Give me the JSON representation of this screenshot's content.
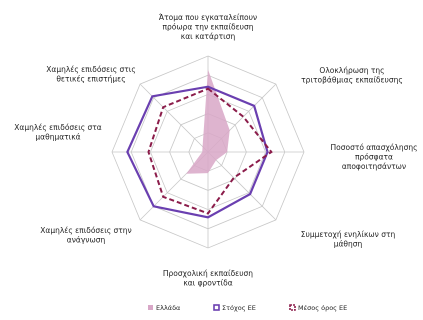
{
  "chart_data": {
    "type": "radar",
    "axes": [
      [
        "Άτομα που εγκαταλείπουν",
        "πρόωρα την εκπαίδευση",
        "και κατάρτιση"
      ],
      [
        "Ολοκλήρωση της",
        "τριτοβάθμιας εκπαίδευσης"
      ],
      [
        "Ποσοστό απασχόλησης",
        "πρόσφατα",
        "αποφοιτησάντων"
      ],
      [
        "Συμμετοχή ενηλίκων στη",
        "μάθηση"
      ],
      [
        "Προσχολική εκπαίδευση",
        "και φροντίδα"
      ],
      [
        "Χαμηλές επιδόσεις στην",
        "ανάγνωση"
      ],
      [
        "Χαμηλές επιδόσεις στα",
        "μαθηματικά"
      ],
      [
        "Χαμηλές επιδόσεις στις",
        "θετικές επιστήμες"
      ]
    ],
    "rings": 5,
    "max": 5,
    "series": [
      {
        "name": "Ελλάδα",
        "style": "area",
        "color": "#d8a7c7",
        "values": [
          4.3,
          1.6,
          1.0,
          0.6,
          1.1,
          1.6,
          0.3,
          0.4
        ]
      },
      {
        "name": "Στόχος ΕΕ",
        "style": "line",
        "color": "#6a3fb0",
        "values": [
          3.4,
          3.4,
          3.1,
          3.1,
          3.4,
          4.0,
          4.2,
          4.1
        ]
      },
      {
        "name": "Μέσος όρος ΕΕ",
        "style": "dashed",
        "color": "#8b1c4a",
        "values": [
          3.3,
          2.6,
          3.3,
          1.9,
          3.2,
          3.3,
          3.1,
          3.3
        ]
      }
    ],
    "legend_position": "bottom"
  }
}
